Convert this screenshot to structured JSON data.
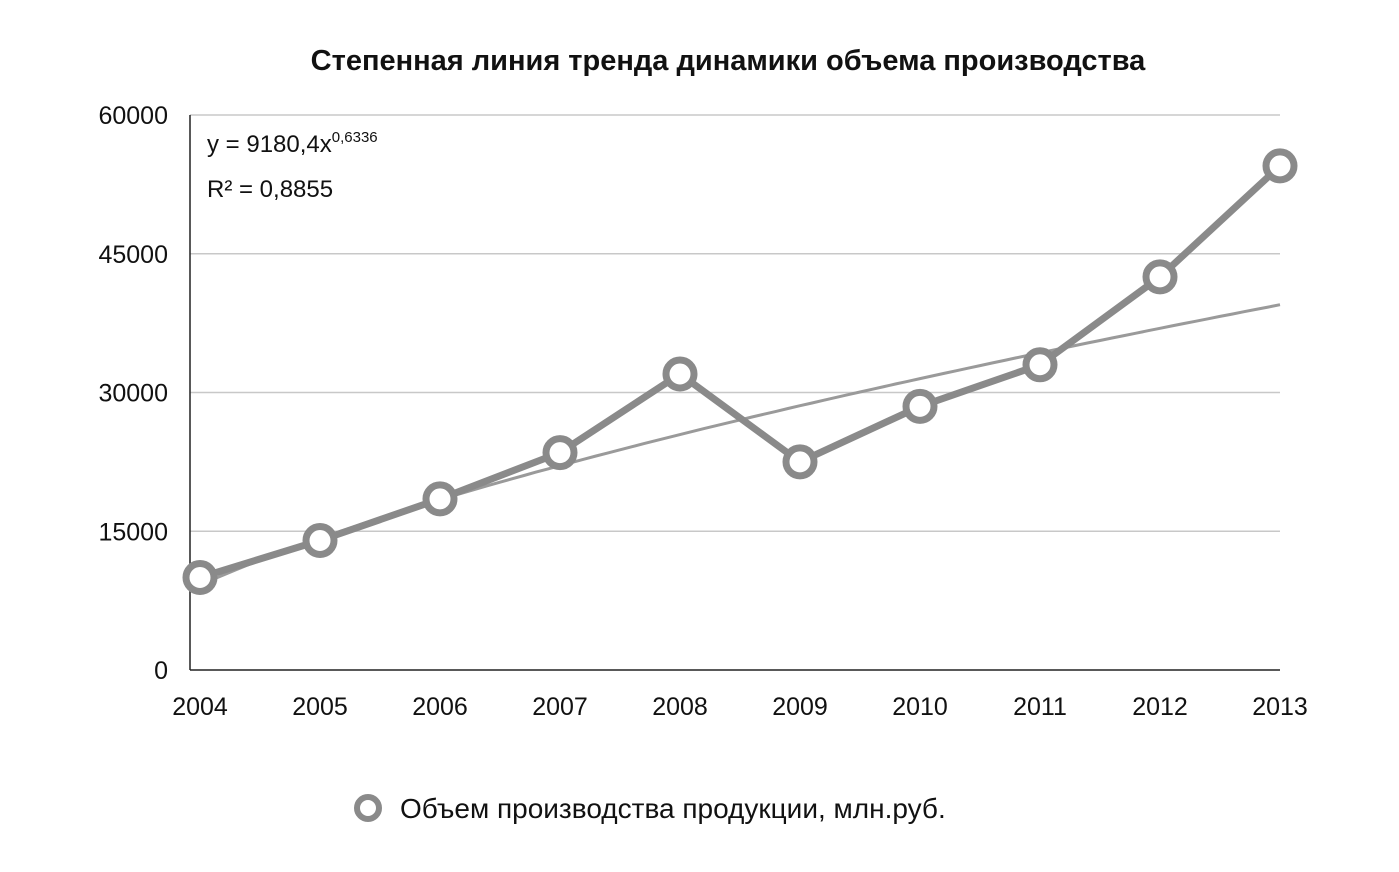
{
  "chart_data": {
    "type": "line",
    "title": "Степенная линия тренда динамики объема производства",
    "xlabel": "",
    "ylabel": "",
    "categories": [
      "2004",
      "2005",
      "2006",
      "2007",
      "2008",
      "2009",
      "2010",
      "2011",
      "2012",
      "2013"
    ],
    "yticks": [
      "0",
      "15000",
      "30000",
      "45000",
      "60000"
    ],
    "ylim": [
      0,
      60000
    ],
    "grid": true,
    "legend_position": "bottom",
    "series": [
      {
        "name": "Объем производства продукции, млн.руб.",
        "values": [
          10000,
          14000,
          18500,
          23500,
          32000,
          22500,
          28500,
          33000,
          42500,
          54500
        ],
        "color": "#8a8a8a",
        "marker": "circle"
      }
    ],
    "trendline": {
      "kind": "power",
      "equation_prefix": "y = 9180,4x",
      "equation_exponent": "0,6336",
      "r_squared_label": "R² = 0,8855",
      "coefficient": 9180.4,
      "exponent": 0.6336,
      "color": "#9a9a9a"
    }
  }
}
